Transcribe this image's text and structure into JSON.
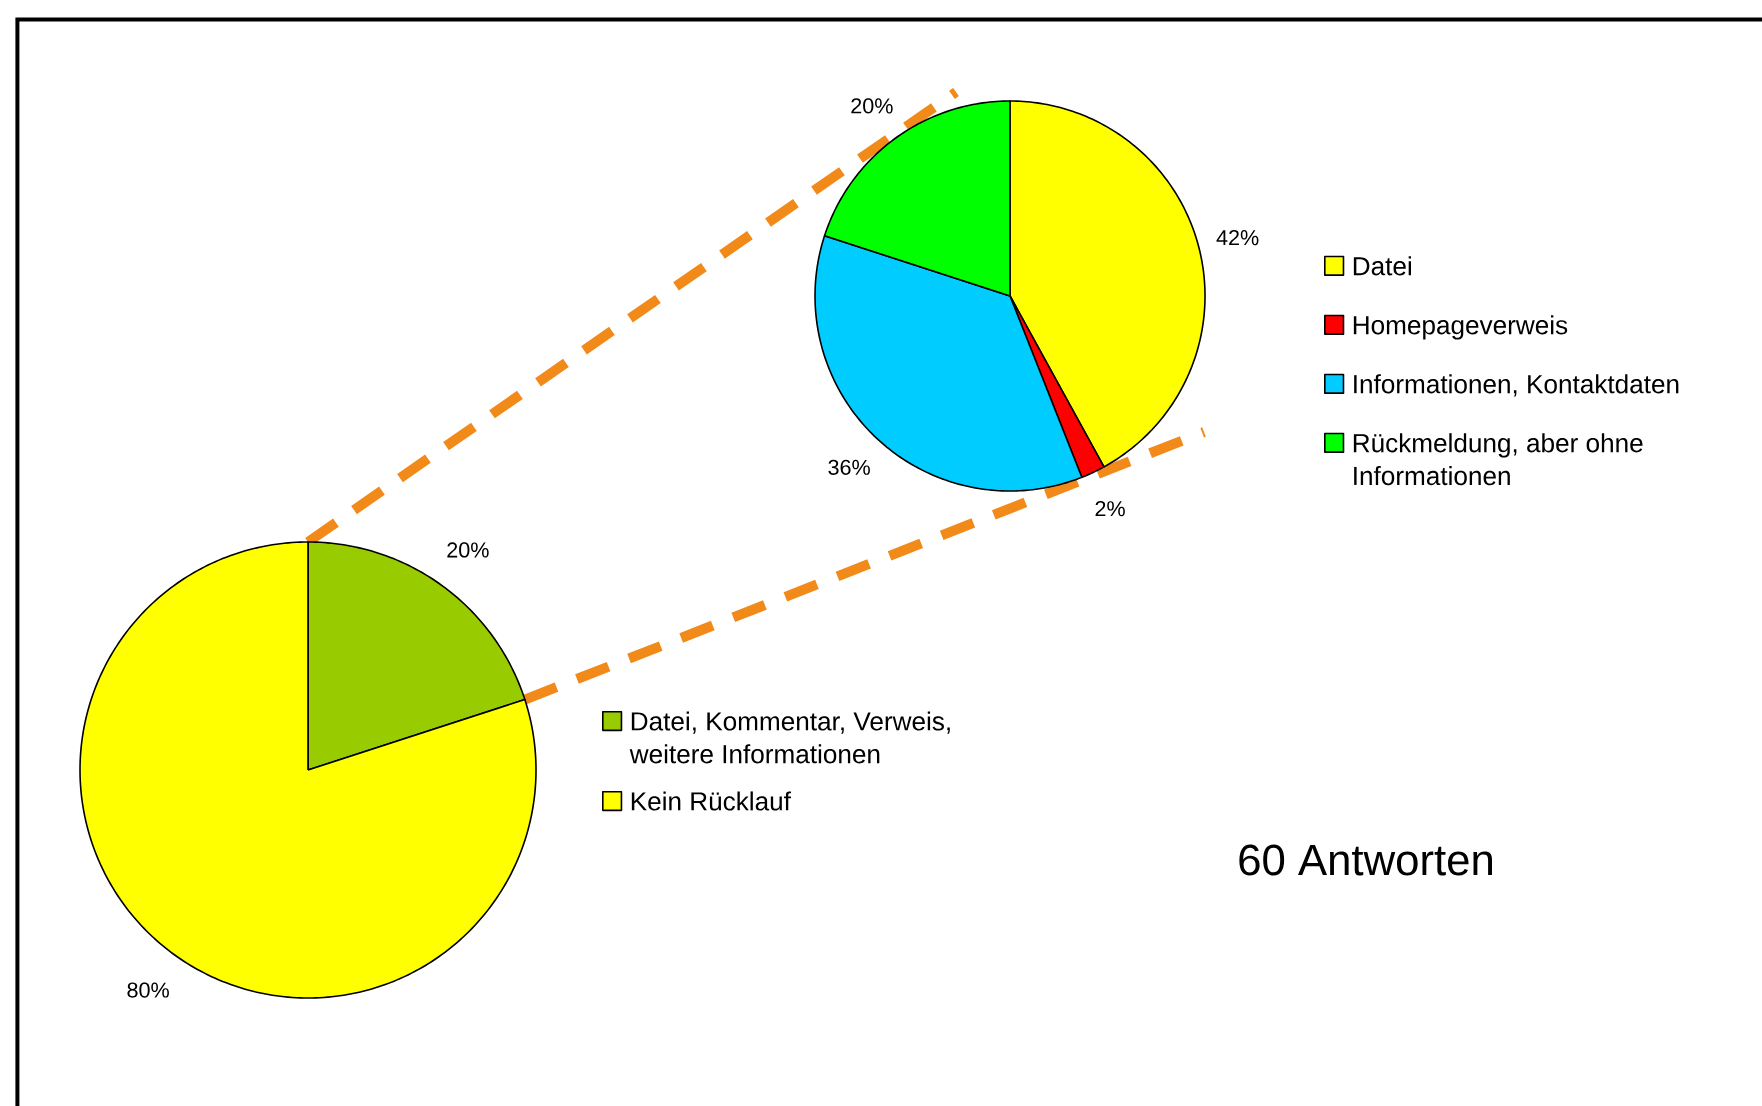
{
  "chart_data": [
    {
      "type": "pie",
      "categories": [
        "Datei",
        "Homepageverweis",
        "Informationen, Kontaktdaten",
        "Rückmeldung, aber ohne Informationen"
      ],
      "values": [
        42,
        2,
        36,
        20
      ],
      "colors": [
        "#ffff00",
        "#ff0000",
        "#00ccff",
        "#00ff00"
      ],
      "value_labels": [
        "42%",
        "2%",
        "36%",
        "20%"
      ],
      "legend": "right"
    },
    {
      "type": "pie",
      "categories": [
        "Datei, Kommentar, Verweis, weitere Informationen",
        "Kein Rücklauf"
      ],
      "values": [
        20,
        80
      ],
      "colors": [
        "#99cc00",
        "#ffff00"
      ],
      "value_labels": [
        "20%",
        "80%"
      ],
      "legend": "right",
      "annotations": [
        "60 Antworten"
      ]
    }
  ]
}
